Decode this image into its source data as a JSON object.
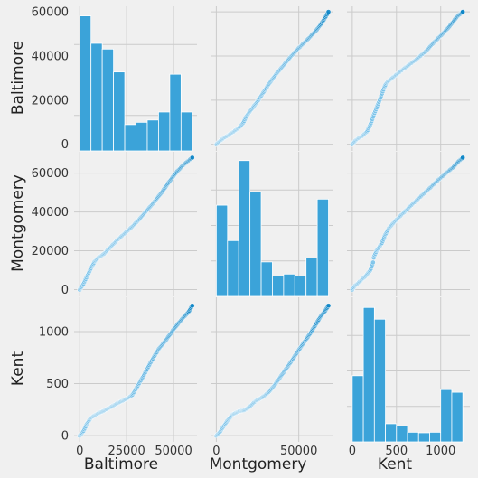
{
  "chart_data": {
    "type": "pairplot",
    "variables": [
      "Baltimore",
      "Montgomery",
      "Kent"
    ],
    "grid": true,
    "colors": {
      "background": "#f0f0f0",
      "panel": "#f0f0f0",
      "grid": "#cbcbcb",
      "bar_fill": "#3ba3d9",
      "bar_edge": "#ffffff",
      "point_fill": "#7cc3ea",
      "point_fill_end": "#0f86c6"
    },
    "axis_ranges": {
      "Baltimore": [
        -3000,
        62500
      ],
      "Montgomery": [
        -3500,
        71000
      ],
      "Kent": [
        -60,
        1330
      ]
    },
    "x_ticks": {
      "Baltimore": [
        0,
        25000,
        50000
      ],
      "Montgomery": [
        0,
        50000
      ],
      "Kent": [
        0,
        500,
        1000
      ]
    },
    "y_ticks": {
      "Baltimore": [
        0,
        20000,
        40000,
        60000
      ],
      "Montgomery": [
        0,
        20000,
        40000,
        60000
      ],
      "Kent": [
        0,
        500,
        1000
      ]
    },
    "histograms": {
      "Baltimore": {
        "bin_edges": [
          0,
          6000,
          12000,
          18000,
          24000,
          30000,
          36000,
          42000,
          48000,
          54000,
          60000
        ],
        "counts": [
          59,
          47,
          44.5,
          34.5,
          11.5,
          12.5,
          13.5,
          17,
          33.5,
          17
        ],
        "count_max": 62
      },
      "Montgomery": {
        "bin_edges": [
          0,
          6800,
          13600,
          20400,
          27200,
          34000,
          40800,
          47600,
          54400,
          61200,
          68000
        ],
        "counts": [
          45,
          27.5,
          67,
          51.5,
          17,
          10,
          11,
          10,
          19,
          48
        ],
        "count_max": 70
      },
      "Kent": {
        "bin_edges": [
          0,
          125,
          250,
          375,
          500,
          625,
          750,
          875,
          1000,
          1125,
          1250
        ],
        "counts": [
          62,
          126,
          115,
          17,
          15,
          9,
          8.5,
          9,
          49,
          46.5
        ],
        "count_max": 133
      }
    },
    "curves": {
      "Baltimore_vs_Montgomery": {
        "baltimore": [
          0,
          2000,
          4000,
          6000,
          8000,
          10000,
          13000,
          16000,
          20000,
          24000,
          28000,
          32000,
          36000,
          40000,
          44000,
          48000,
          52000,
          55000,
          58000,
          60000
        ],
        "montgomery": [
          0,
          3000,
          7000,
          11000,
          14500,
          16500,
          18500,
          21500,
          25500,
          29000,
          32500,
          36500,
          41000,
          45500,
          50500,
          56000,
          61000,
          64000,
          66500,
          68000
        ]
      },
      "Baltimore_vs_Kent": {
        "baltimore": [
          0,
          1000,
          2000,
          3000,
          4000,
          6000,
          8000,
          10000,
          13000,
          16000,
          20000,
          24000,
          26000,
          28000,
          30000,
          34000,
          38000,
          42000,
          46000,
          50000,
          53000,
          56000,
          58000,
          60000
        ],
        "kent": [
          0,
          20,
          45,
          80,
          120,
          170,
          195,
          215,
          240,
          270,
          310,
          345,
          365,
          390,
          450,
          575,
          710,
          830,
          920,
          1020,
          1090,
          1150,
          1190,
          1250
        ]
      },
      "Montgomery_vs_Kent": {
        "montgomery": [
          0,
          2000,
          4000,
          7000,
          10000,
          14000,
          17000,
          20000,
          24000,
          28000,
          32000,
          36000,
          40000,
          44000,
          48000,
          52000,
          56000,
          60000,
          63000,
          66000,
          68000
        ],
        "kent": [
          0,
          30,
          80,
          150,
          205,
          235,
          245,
          275,
          335,
          370,
          420,
          500,
          590,
          680,
          775,
          870,
          960,
          1060,
          1140,
          1200,
          1250
        ]
      }
    }
  }
}
